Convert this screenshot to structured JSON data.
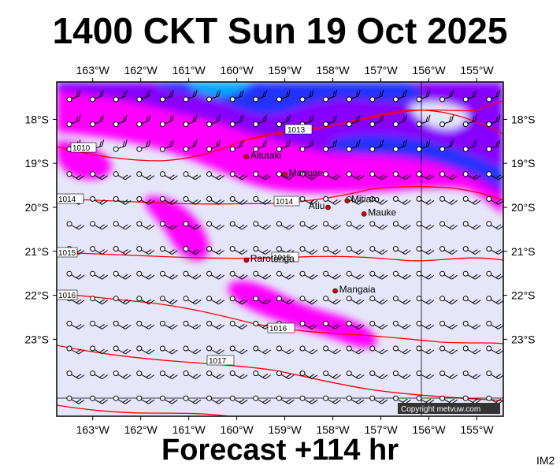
{
  "title": "1400 CKT Sun 19 Oct 2025",
  "subtitle": "Forecast +114 hr",
  "corner_label": "IM2",
  "copyright": "Copyright metvuw.com",
  "colors": {
    "background": "#e6e6fa",
    "rain_light": "#ff00ff",
    "rain_medium": "#8800ff",
    "rain_heavy": "#2233ff",
    "rain_extreme": "#00aaff",
    "isobar": "#ff0000",
    "city_marker": "#dd0000"
  },
  "chart_data": {
    "type": "map",
    "title": "1400 CKT Sun 19 Oct 2025",
    "lon_range": [
      -163.75,
      -154.45
    ],
    "lat_range": [
      -24.75,
      -17.15
    ],
    "lon_ticks": [
      "163°W",
      "162°W",
      "161°W",
      "160°W",
      "159°W",
      "158°W",
      "157°W",
      "156°W",
      "155°W"
    ],
    "lat_ticks": [
      "18°S",
      "19°S",
      "20°S",
      "21°S",
      "22°S",
      "23°S"
    ],
    "lon_tick_values": [
      -163,
      -162,
      -161,
      -160,
      -159,
      -158,
      -157,
      -156,
      -155
    ],
    "lat_tick_values": [
      -18,
      -19,
      -20,
      -21,
      -22,
      -23
    ],
    "places": [
      {
        "name": "Aitutaki",
        "lon": -159.8,
        "lat": -18.85
      },
      {
        "name": "Manuae",
        "lon": -159.0,
        "lat": -19.25
      },
      {
        "name": "Atiu",
        "lon": -158.1,
        "lat": -20.0
      },
      {
        "name": "Mitiaro",
        "lon": -157.7,
        "lat": -19.85
      },
      {
        "name": "Mauke",
        "lon": -157.35,
        "lat": -20.15
      },
      {
        "name": "Rarotonga",
        "lon": -159.8,
        "lat": -21.2
      },
      {
        "name": "Mangaia",
        "lon": -157.95,
        "lat": -21.9
      }
    ],
    "isobar_labels": [
      "1010",
      "1013",
      "1014",
      "1015",
      "1015",
      "1016",
      "1016",
      "1017"
    ]
  }
}
